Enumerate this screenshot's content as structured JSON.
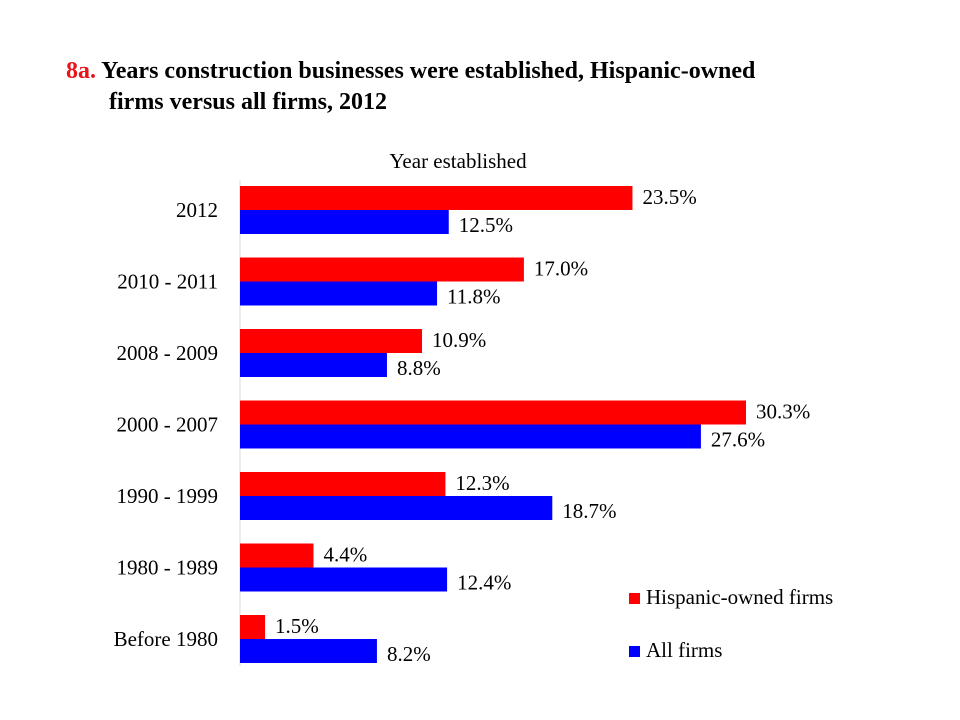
{
  "title": {
    "number": "8a.",
    "line1": "Years construction businesses were established, Hispanic-owned",
    "line2": "firms versus all firms, 2012"
  },
  "chart_data": {
    "type": "bar",
    "orientation": "horizontal",
    "subtitle": "Year established",
    "categories": [
      "2012",
      "2010 - 2011",
      "2008 - 2009",
      "2000 - 2007",
      "1990 - 1999",
      "1980 - 1989",
      "Before 1980"
    ],
    "series": [
      {
        "name": "Hispanic-owned firms",
        "color": "#ff0000",
        "values": [
          23.5,
          17.0,
          10.9,
          30.3,
          12.3,
          4.4,
          1.5
        ],
        "labels": [
          "23.5%",
          "17.0%",
          "10.9%",
          "30.3%",
          "12.3%",
          "4.4%",
          "1.5%"
        ]
      },
      {
        "name": "All firms",
        "color": "#0000ff",
        "values": [
          12.5,
          11.8,
          8.8,
          27.6,
          18.7,
          12.4,
          8.2
        ],
        "labels": [
          "12.5%",
          "11.8%",
          "8.8%",
          "27.6%",
          "18.7%",
          "12.4%",
          "8.2%"
        ]
      }
    ],
    "xlim": [
      0,
      33
    ],
    "unit": "%",
    "legend_position": "bottom-right",
    "grid": false
  }
}
